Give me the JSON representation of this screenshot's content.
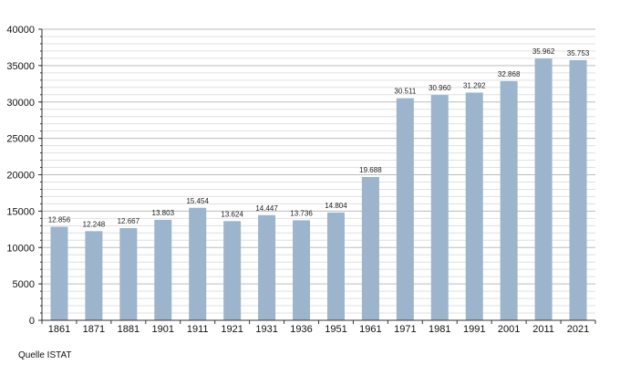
{
  "chart_data": {
    "type": "bar",
    "categories": [
      "1861",
      "1871",
      "1881",
      "1901",
      "1911",
      "1921",
      "1931",
      "1936",
      "1951",
      "1961",
      "1971",
      "1981",
      "1991",
      "2001",
      "2011",
      "2021"
    ],
    "values": [
      12856,
      12248,
      12667,
      13803,
      15454,
      13624,
      14447,
      13736,
      14804,
      19688,
      30511,
      30960,
      31292,
      32868,
      35962,
      35753
    ],
    "data_labels": [
      "12.856",
      "12.248",
      "12.667",
      "13.803",
      "15.454",
      "13.624",
      "14.447",
      "13.736",
      "14.804",
      "19.688",
      "30.511",
      "30.960",
      "31.292",
      "32.868",
      "35.962",
      "35.753"
    ],
    "ylim": [
      0,
      40000
    ],
    "y_ticks": [
      0,
      5000,
      10000,
      15000,
      20000,
      25000,
      30000,
      35000,
      40000
    ],
    "y_tick_labels": [
      "0",
      "5000",
      "10000",
      "15000",
      "20000",
      "25000",
      "30000",
      "35000",
      "40000"
    ],
    "minor_grid_step": 1000,
    "grid": true,
    "bar_color": "#9cb4cc",
    "title": "",
    "xlabel": "",
    "ylabel": ""
  },
  "source": "Quelle ISTAT"
}
